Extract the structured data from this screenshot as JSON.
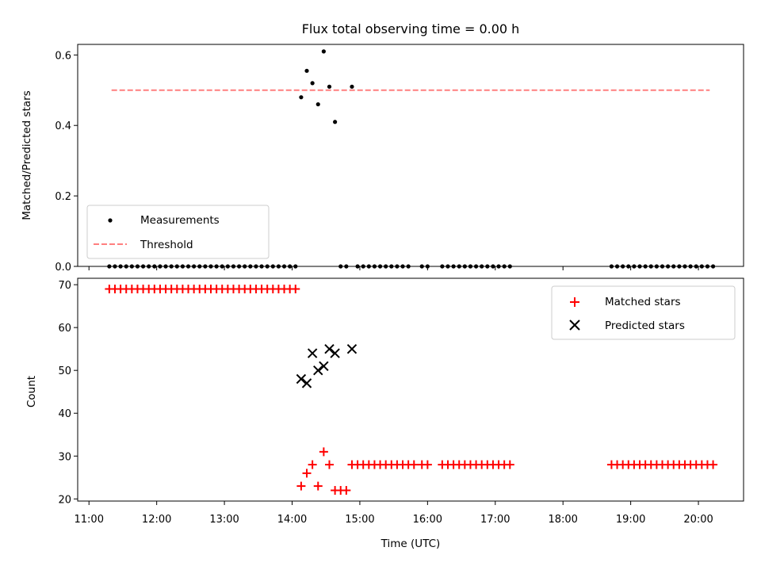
{
  "chart_data": [
    {
      "type": "scatter",
      "title": "Flux total observing time = 0.00 h",
      "xlabel": "",
      "ylabel": "Matched/Predicted stars",
      "ylim": [
        0.0,
        0.63
      ],
      "yticks": [
        "0.0",
        "0.2",
        "0.4",
        "0.6"
      ],
      "ytick_values": [
        0.0,
        0.2,
        0.4,
        0.6
      ],
      "legend": {
        "placement": "lower-left",
        "entries": [
          {
            "label": "Measurements",
            "marker": "dot",
            "color": "#000000"
          },
          {
            "label": "Threshold",
            "marker": "dashed-line",
            "color": "#ff7f7f"
          }
        ]
      },
      "threshold": {
        "value": 0.5,
        "x_range": [
          "11:20",
          "20:10"
        ],
        "color": "#ff7f7f"
      },
      "series": [
        {
          "name": "Measurements",
          "color": "#000000",
          "points": [
            [
              "11:18",
              0
            ],
            [
              "11:23",
              0
            ],
            [
              "11:28",
              0
            ],
            [
              "11:33",
              0
            ],
            [
              "11:38",
              0
            ],
            [
              "11:43",
              0
            ],
            [
              "11:48",
              0
            ],
            [
              "11:53",
              0
            ],
            [
              "11:58",
              0
            ],
            [
              "12:03",
              0
            ],
            [
              "12:08",
              0
            ],
            [
              "12:13",
              0
            ],
            [
              "12:18",
              0
            ],
            [
              "12:23",
              0
            ],
            [
              "12:28",
              0
            ],
            [
              "12:33",
              0
            ],
            [
              "12:38",
              0
            ],
            [
              "12:43",
              0
            ],
            [
              "12:48",
              0
            ],
            [
              "12:53",
              0
            ],
            [
              "12:58",
              0
            ],
            [
              "13:03",
              0
            ],
            [
              "13:08",
              0
            ],
            [
              "13:13",
              0
            ],
            [
              "13:18",
              0
            ],
            [
              "13:23",
              0
            ],
            [
              "13:28",
              0
            ],
            [
              "13:33",
              0
            ],
            [
              "13:38",
              0
            ],
            [
              "13:43",
              0
            ],
            [
              "13:48",
              0
            ],
            [
              "13:53",
              0
            ],
            [
              "13:58",
              0
            ],
            [
              "14:03",
              0
            ],
            [
              "14:08",
              0.48
            ],
            [
              "14:13",
              0.555
            ],
            [
              "14:18",
              0.52
            ],
            [
              "14:23",
              0.46
            ],
            [
              "14:28",
              0.61
            ],
            [
              "14:33",
              0.51
            ],
            [
              "14:38",
              0.41
            ],
            [
              "14:43",
              0
            ],
            [
              "14:48",
              0
            ],
            [
              "14:53",
              0.51
            ],
            [
              "14:58",
              0
            ],
            [
              "15:03",
              0
            ],
            [
              "15:08",
              0
            ],
            [
              "15:13",
              0
            ],
            [
              "15:18",
              0
            ],
            [
              "15:23",
              0
            ],
            [
              "15:28",
              0
            ],
            [
              "15:33",
              0
            ],
            [
              "15:38",
              0
            ],
            [
              "15:43",
              0
            ],
            [
              "15:55",
              0
            ],
            [
              "16:00",
              0
            ],
            [
              "16:13",
              0
            ],
            [
              "16:18",
              0
            ],
            [
              "16:23",
              0
            ],
            [
              "16:28",
              0
            ],
            [
              "16:33",
              0
            ],
            [
              "16:38",
              0
            ],
            [
              "16:43",
              0
            ],
            [
              "16:48",
              0
            ],
            [
              "16:53",
              0
            ],
            [
              "16:58",
              0
            ],
            [
              "17:03",
              0
            ],
            [
              "17:08",
              0
            ],
            [
              "17:13",
              0
            ],
            [
              "18:43",
              0
            ],
            [
              "18:48",
              0
            ],
            [
              "18:53",
              0
            ],
            [
              "18:58",
              0
            ],
            [
              "19:03",
              0
            ],
            [
              "19:08",
              0
            ],
            [
              "19:13",
              0
            ],
            [
              "19:18",
              0
            ],
            [
              "19:23",
              0
            ],
            [
              "19:28",
              0
            ],
            [
              "19:33",
              0
            ],
            [
              "19:38",
              0
            ],
            [
              "19:43",
              0
            ],
            [
              "19:48",
              0
            ],
            [
              "19:53",
              0
            ],
            [
              "19:58",
              0
            ],
            [
              "20:03",
              0
            ],
            [
              "20:08",
              0
            ],
            [
              "20:13",
              0
            ]
          ]
        }
      ]
    },
    {
      "type": "scatter",
      "title": "",
      "xlabel": "Time (UTC)",
      "ylabel": "Count",
      "ylim": [
        19.5,
        71.5
      ],
      "xlim": [
        "10:50",
        "20:40"
      ],
      "xticks": [
        "11:00",
        "12:00",
        "13:00",
        "14:00",
        "15:00",
        "16:00",
        "17:00",
        "18:00",
        "19:00",
        "20:00"
      ],
      "yticks": [
        "20",
        "30",
        "40",
        "50",
        "60",
        "70"
      ],
      "ytick_values": [
        20,
        30,
        40,
        50,
        60,
        70
      ],
      "legend": {
        "placement": "top-right",
        "entries": [
          {
            "label": "Matched stars",
            "marker": "plus",
            "color": "#ff0000"
          },
          {
            "label": "Predicted stars",
            "marker": "x",
            "color": "#000000"
          }
        ]
      },
      "series": [
        {
          "name": "Matched stars",
          "color": "#ff0000",
          "marker": "plus",
          "points": [
            [
              "11:18",
              69
            ],
            [
              "11:23",
              69
            ],
            [
              "11:28",
              69
            ],
            [
              "11:33",
              69
            ],
            [
              "11:38",
              69
            ],
            [
              "11:43",
              69
            ],
            [
              "11:48",
              69
            ],
            [
              "11:53",
              69
            ],
            [
              "11:58",
              69
            ],
            [
              "12:03",
              69
            ],
            [
              "12:08",
              69
            ],
            [
              "12:13",
              69
            ],
            [
              "12:18",
              69
            ],
            [
              "12:23",
              69
            ],
            [
              "12:28",
              69
            ],
            [
              "12:33",
              69
            ],
            [
              "12:38",
              69
            ],
            [
              "12:43",
              69
            ],
            [
              "12:48",
              69
            ],
            [
              "12:53",
              69
            ],
            [
              "12:58",
              69
            ],
            [
              "13:03",
              69
            ],
            [
              "13:08",
              69
            ],
            [
              "13:13",
              69
            ],
            [
              "13:18",
              69
            ],
            [
              "13:23",
              69
            ],
            [
              "13:28",
              69
            ],
            [
              "13:33",
              69
            ],
            [
              "13:38",
              69
            ],
            [
              "13:43",
              69
            ],
            [
              "13:48",
              69
            ],
            [
              "13:53",
              69
            ],
            [
              "13:58",
              69
            ],
            [
              "14:03",
              69
            ],
            [
              "14:08",
              23
            ],
            [
              "14:13",
              26
            ],
            [
              "14:18",
              28
            ],
            [
              "14:23",
              23
            ],
            [
              "14:28",
              31
            ],
            [
              "14:33",
              28
            ],
            [
              "14:38",
              22
            ],
            [
              "14:43",
              22
            ],
            [
              "14:48",
              22
            ],
            [
              "14:53",
              28
            ],
            [
              "14:58",
              28
            ],
            [
              "15:03",
              28
            ],
            [
              "15:08",
              28
            ],
            [
              "15:13",
              28
            ],
            [
              "15:18",
              28
            ],
            [
              "15:23",
              28
            ],
            [
              "15:28",
              28
            ],
            [
              "15:33",
              28
            ],
            [
              "15:38",
              28
            ],
            [
              "15:43",
              28
            ],
            [
              "15:48",
              28
            ],
            [
              "15:55",
              28
            ],
            [
              "16:00",
              28
            ],
            [
              "16:13",
              28
            ],
            [
              "16:18",
              28
            ],
            [
              "16:23",
              28
            ],
            [
              "16:28",
              28
            ],
            [
              "16:33",
              28
            ],
            [
              "16:38",
              28
            ],
            [
              "16:43",
              28
            ],
            [
              "16:48",
              28
            ],
            [
              "16:53",
              28
            ],
            [
              "16:58",
              28
            ],
            [
              "17:03",
              28
            ],
            [
              "17:08",
              28
            ],
            [
              "17:13",
              28
            ],
            [
              "18:43",
              28
            ],
            [
              "18:48",
              28
            ],
            [
              "18:53",
              28
            ],
            [
              "18:58",
              28
            ],
            [
              "19:03",
              28
            ],
            [
              "19:08",
              28
            ],
            [
              "19:13",
              28
            ],
            [
              "19:18",
              28
            ],
            [
              "19:23",
              28
            ],
            [
              "19:28",
              28
            ],
            [
              "19:33",
              28
            ],
            [
              "19:38",
              28
            ],
            [
              "19:43",
              28
            ],
            [
              "19:48",
              28
            ],
            [
              "19:53",
              28
            ],
            [
              "19:58",
              28
            ],
            [
              "20:03",
              28
            ],
            [
              "20:08",
              28
            ],
            [
              "20:13",
              28
            ]
          ]
        },
        {
          "name": "Predicted stars",
          "color": "#000000",
          "marker": "x",
          "points": [
            [
              "14:08",
              48
            ],
            [
              "14:13",
              47
            ],
            [
              "14:18",
              54
            ],
            [
              "14:23",
              50
            ],
            [
              "14:28",
              51
            ],
            [
              "14:33",
              55
            ],
            [
              "14:38",
              54
            ],
            [
              "14:53",
              55
            ]
          ]
        }
      ]
    }
  ]
}
